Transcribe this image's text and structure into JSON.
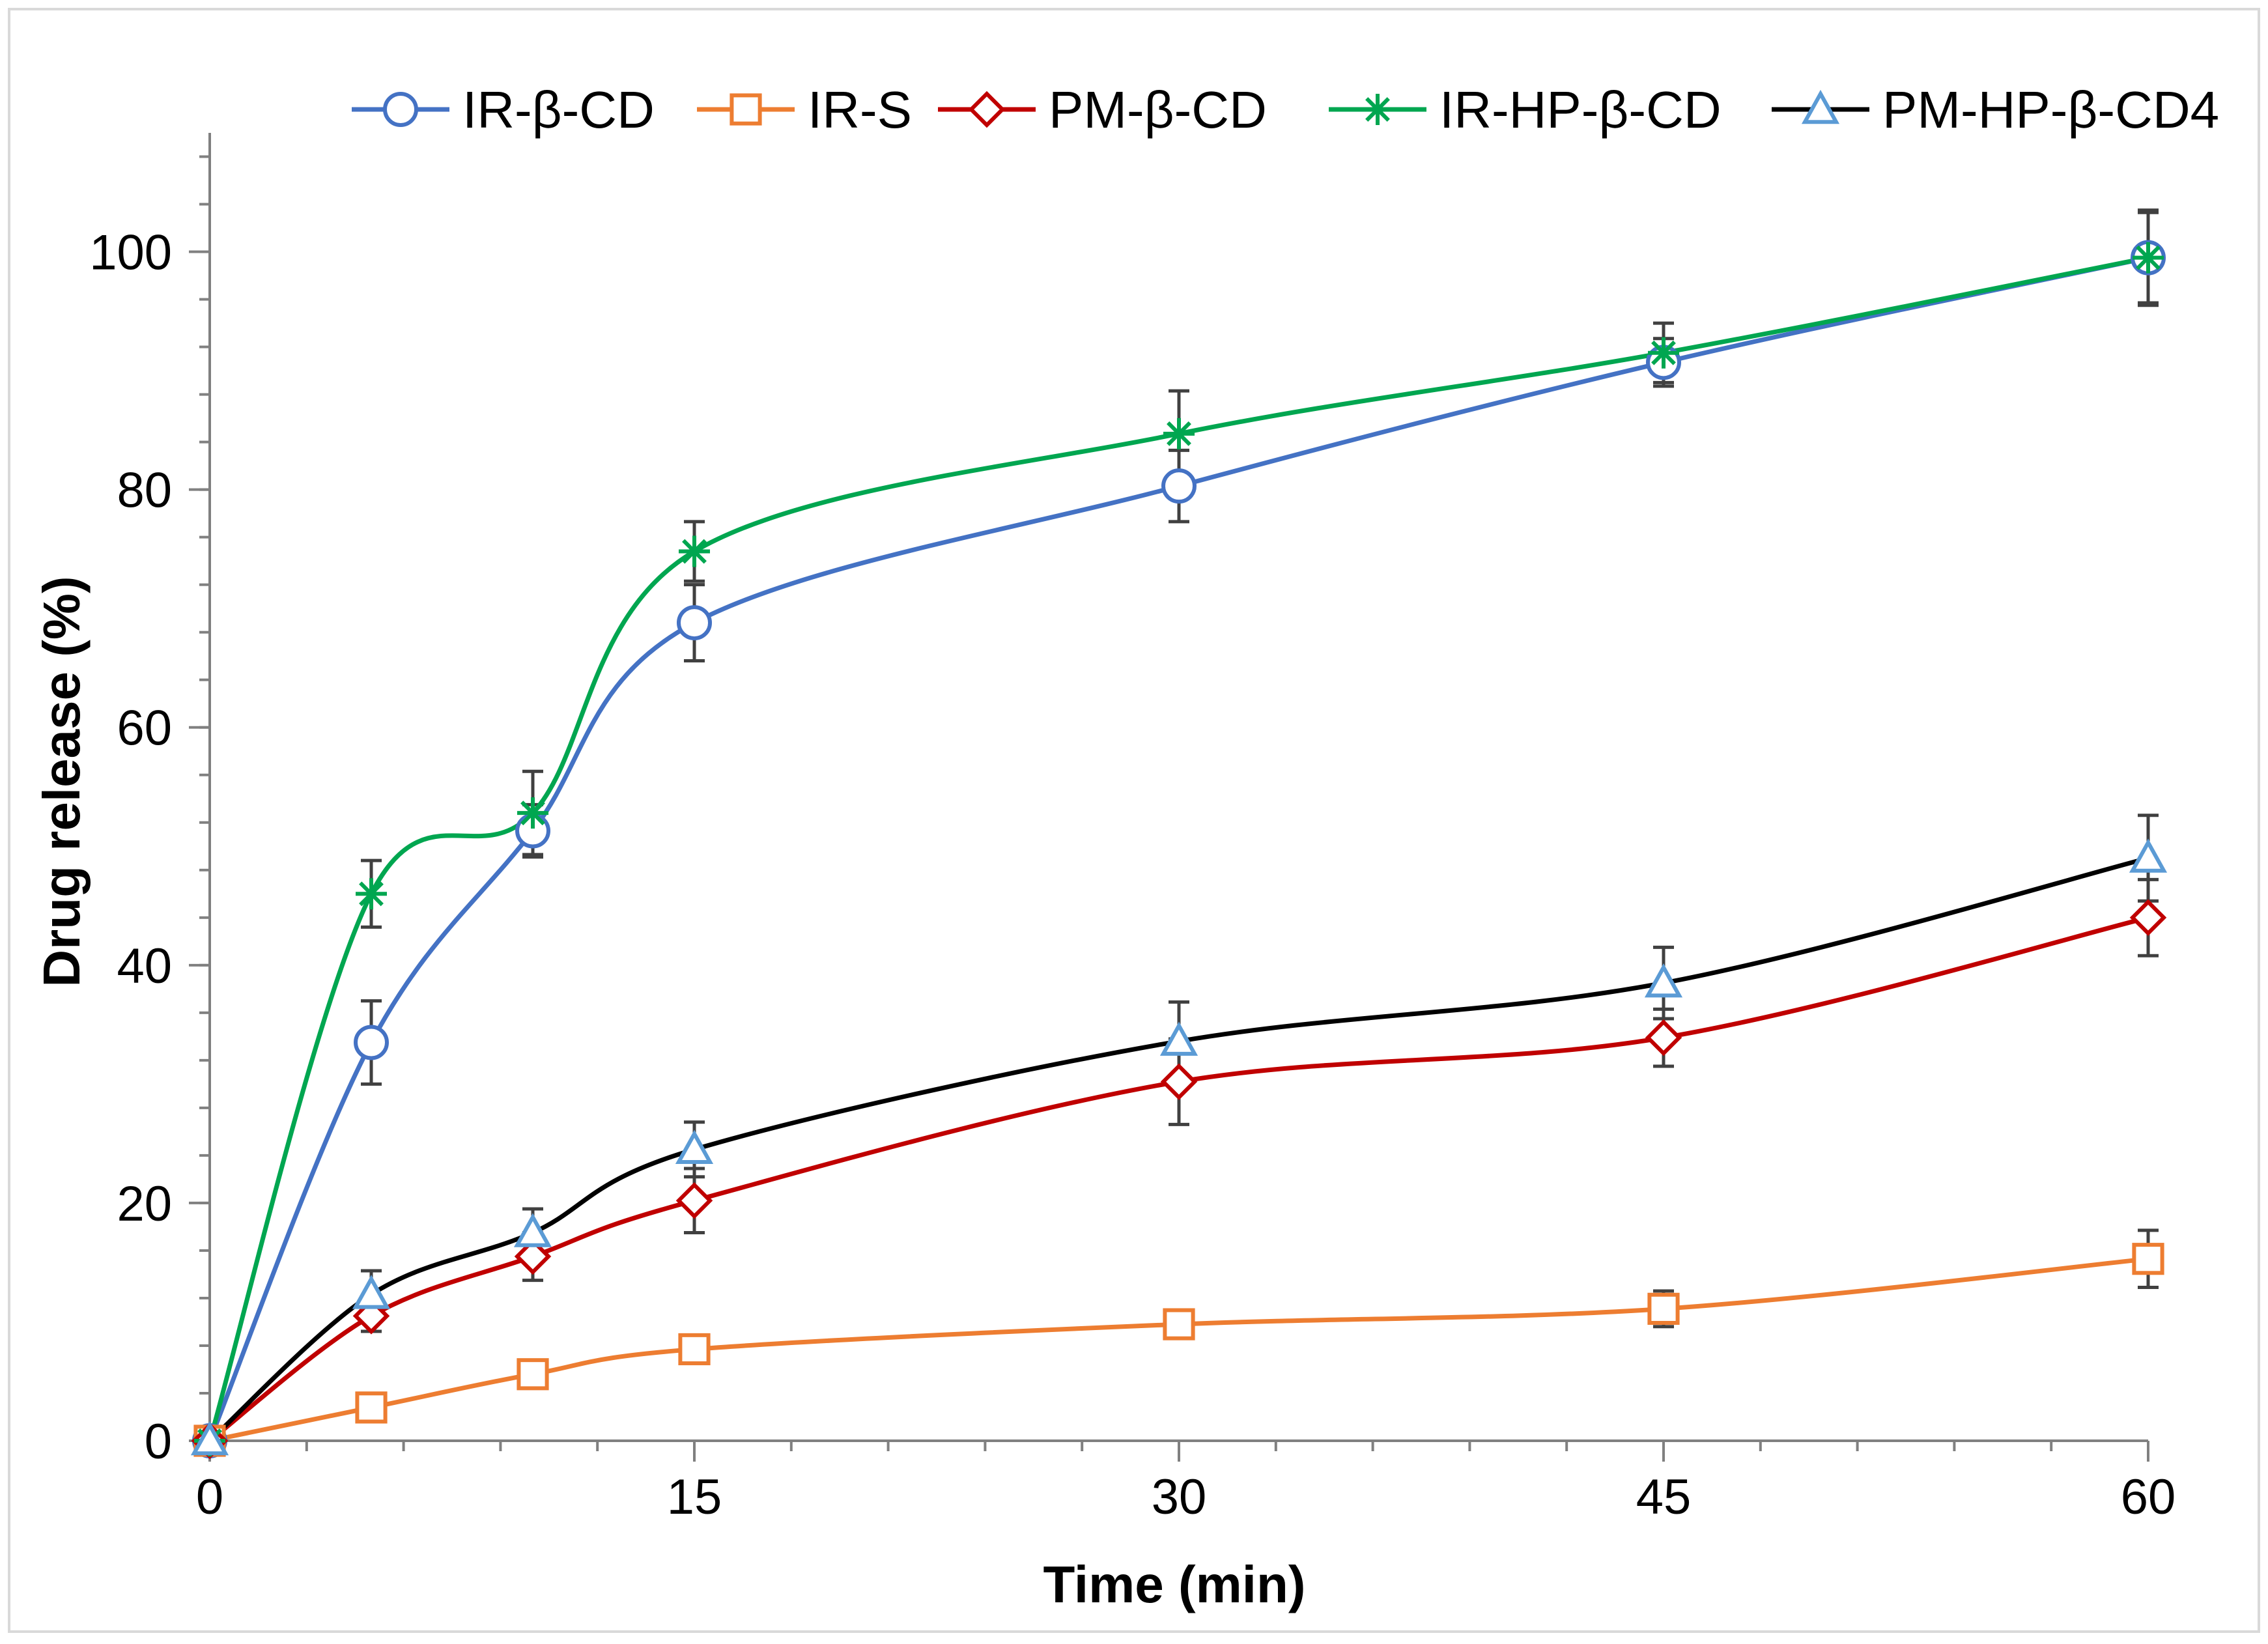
{
  "chart_data": {
    "type": "line",
    "title": "",
    "xlabel": "Time (min)",
    "ylabel": "Drug release (%)",
    "xlim": [
      0,
      60
    ],
    "ylim": [
      0,
      110
    ],
    "x_ticks": [
      "0",
      "15",
      "30",
      "45",
      "60"
    ],
    "y_ticks": [
      "0",
      "20",
      "40",
      "60",
      "80",
      "100"
    ],
    "grid": false,
    "legend_position": "top",
    "x": [
      0,
      5,
      10,
      15,
      30,
      45,
      60
    ],
    "series": [
      {
        "name": "IR-β-CD",
        "color": "#4472C4",
        "marker": "circle",
        "values": [
          0,
          33.5,
          51.3,
          68.8,
          80.3,
          90.7,
          99.5
        ],
        "errors": [
          0,
          3.5,
          2.2,
          3.2,
          3.0,
          2.0,
          4.0
        ]
      },
      {
        "name": "IR-S",
        "color": "#ED7D31",
        "marker": "square",
        "values": [
          0,
          2.8,
          5.6,
          7.7,
          9.8,
          11.1,
          15.3
        ],
        "errors": [
          0,
          0.8,
          1.0,
          1.0,
          1.0,
          1.5,
          2.4
        ]
      },
      {
        "name": "PM-β-CD",
        "color": "#C00000",
        "marker": "diamond",
        "values": [
          0,
          10.5,
          15.5,
          20.2,
          30.2,
          33.9,
          44.0
        ],
        "errors": [
          0,
          1.3,
          2.0,
          2.7,
          3.6,
          2.4,
          3.2
        ]
      },
      {
        "name": "IR-HP-β-CD",
        "color": "#00A650",
        "marker": "star",
        "values": [
          0,
          46.0,
          52.8,
          74.8,
          84.7,
          91.5,
          99.5
        ],
        "errors": [
          0,
          2.8,
          3.5,
          2.5,
          3.6,
          2.5,
          3.8
        ]
      },
      {
        "name": "PM-HP-β-CD4",
        "color": "#000000",
        "marker_color": "#5B9BD5",
        "marker": "triangle",
        "values": [
          0,
          12.3,
          17.5,
          24.5,
          33.6,
          38.5,
          49.0
        ],
        "errors": [
          0,
          2.0,
          2.0,
          2.3,
          3.3,
          3.0,
          3.6
        ]
      }
    ]
  }
}
